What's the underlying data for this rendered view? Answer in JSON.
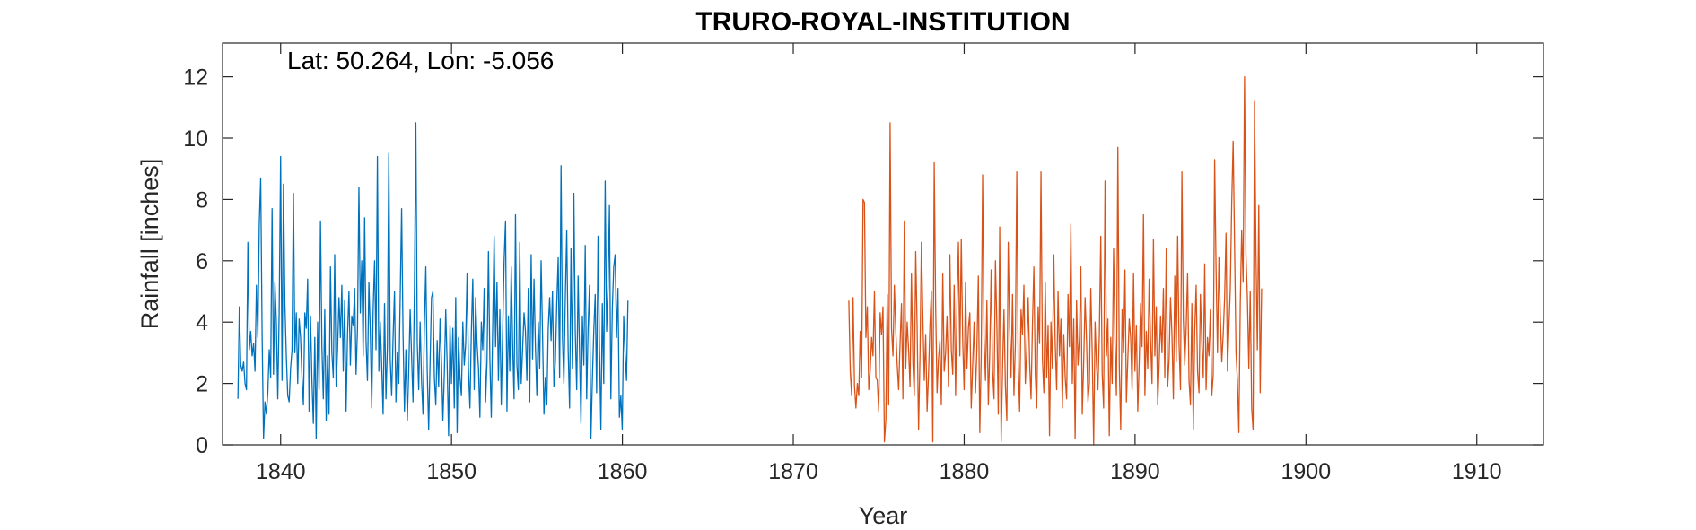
{
  "chart_data": {
    "type": "line",
    "title": "TRURO-ROYAL-INSTITUTION",
    "annotation": "Lat: 50.264, Lon: -5.056",
    "xlabel": "Year",
    "ylabel": "Rainfall [inches]",
    "xlim": [
      1836.6,
      1913.9
    ],
    "ylim": [
      0,
      13.1
    ],
    "xticks": [
      1840,
      1850,
      1860,
      1870,
      1880,
      1890,
      1900,
      1910
    ],
    "yticks": [
      0,
      2,
      4,
      6,
      8,
      10,
      12
    ],
    "grid": false,
    "series": [
      {
        "color": "#0072BD",
        "x_start": 1837.5,
        "step": 0.0833,
        "values": [
          1.5,
          4.5,
          2.6,
          2.4,
          2.7,
          2.0,
          1.8,
          6.6,
          3.1,
          3.7,
          2.9,
          3.3,
          2.4,
          5.2,
          3.5,
          7.2,
          8.7,
          3.6,
          0.2,
          1.4,
          1.0,
          1.7,
          3.1,
          2.2,
          7.7,
          2.3,
          5.3,
          4.0,
          1.5,
          4.4,
          9.4,
          2.1,
          8.5,
          4.6,
          2.9,
          1.6,
          1.4,
          2.5,
          3.1,
          8.2,
          3.0,
          4.3,
          2.0,
          4.1,
          3.5,
          2.2,
          1.3,
          4.3,
          3.8,
          5.4,
          1.1,
          4.2,
          2.1,
          0.7,
          3.5,
          0.2,
          4.0,
          1.8,
          7.3,
          3.2,
          1.5,
          4.4,
          0.8,
          2.9,
          1.0,
          5.8,
          3.0,
          2.2,
          6.2,
          1.9,
          3.1,
          4.8,
          3.5,
          5.2,
          2.4,
          4.7,
          1.1,
          3.6,
          5.0,
          2.6,
          4.2,
          3.9,
          5.1,
          2.3,
          3.8,
          8.4,
          4.3,
          6.0,
          2.9,
          7.4,
          3.4,
          2.1,
          5.3,
          3.7,
          1.2,
          4.4,
          6.0,
          3.1,
          9.4,
          2.4,
          4.0,
          2.6,
          1.0,
          4.6,
          1.5,
          3.2,
          9.5,
          2.8,
          1.6,
          3.5,
          5.0,
          1.4,
          3.0,
          2.0,
          4.8,
          7.7,
          3.6,
          1.1,
          3.1,
          0.8,
          2.4,
          4.4,
          2.9,
          1.4,
          5.1,
          10.5,
          3.3,
          1.8,
          4.0,
          2.1,
          1.0,
          3.9,
          5.8,
          2.4,
          0.5,
          2.7,
          4.8,
          5.0,
          2.2,
          1.3,
          3.4,
          1.9,
          4.1,
          2.7,
          0.8,
          2.3,
          4.4,
          2.6,
          0.3,
          3.9,
          2.0,
          3.8,
          1.2,
          4.8,
          0.4,
          3.5,
          2.2,
          1.6,
          4.0,
          2.6,
          3.3,
          5.6,
          2.4,
          1.2,
          3.7,
          5.4,
          1.8,
          4.8,
          3.3,
          2.5,
          0.9,
          4.0,
          3.1,
          5.1,
          1.4,
          2.7,
          6.3,
          2.8,
          0.9,
          3.9,
          6.8,
          3.2,
          5.3,
          2.1,
          4.4,
          1.3,
          3.7,
          6.0,
          7.3,
          1.1,
          4.2,
          2.4,
          5.8,
          3.3,
          1.5,
          7.5,
          2.6,
          1.8,
          6.6,
          2.0,
          3.1,
          4.3,
          3.7,
          2.1,
          5.1,
          1.4,
          6.2,
          2.8,
          5.4,
          3.2,
          1.6,
          4.0,
          2.5,
          6.0,
          3.6,
          1.0,
          2.2,
          1.3,
          3.8,
          4.8,
          3.4,
          5.0,
          1.9,
          2.7,
          4.6,
          6.1,
          2.2,
          9.1,
          3.5,
          2.0,
          4.8,
          7.0,
          3.1,
          1.2,
          6.4,
          2.5,
          8.2,
          3.7,
          1.8,
          5.5,
          3.0,
          0.7,
          4.2,
          2.6,
          6.5,
          1.5,
          3.8,
          5.2,
          0.2,
          2.1,
          3.7,
          4.9,
          1.7,
          6.8,
          3.2,
          0.5,
          4.6,
          2.0,
          8.6,
          3.7,
          5.1,
          7.8,
          1.5,
          4.4,
          5.8,
          6.2,
          3.5,
          5.1,
          0.9,
          1.6,
          0.5,
          4.2,
          3.0,
          2.1,
          4.7
        ]
      },
      {
        "color": "#D95319",
        "x_start": 1873.25,
        "step": 0.0833,
        "values": [
          4.7,
          2.4,
          1.6,
          4.8,
          1.9,
          1.2,
          2.0,
          1.6,
          3.7,
          2.2,
          8.0,
          7.9,
          3.5,
          4.5,
          1.8,
          2.4,
          3.5,
          2.9,
          5.0,
          2.2,
          2.1,
          1.1,
          4.3,
          3.6,
          4.5,
          0.1,
          0.8,
          4.9,
          1.3,
          10.5,
          3.8,
          2.9,
          5.2,
          3.7,
          2.6,
          1.8,
          3.3,
          4.6,
          1.5,
          7.3,
          2.5,
          4.0,
          3.1,
          1.9,
          5.6,
          2.7,
          1.6,
          6.3,
          3.8,
          0.5,
          2.9,
          6.6,
          4.2,
          2.1,
          3.6,
          1.1,
          2.3,
          3.9,
          5.0,
          0.1,
          9.2,
          4.5,
          1.7,
          2.8,
          3.4,
          1.3,
          5.6,
          2.4,
          3.0,
          4.2,
          1.9,
          6.2,
          3.1,
          2.3,
          5.2,
          1.6,
          4.6,
          6.6,
          2.9,
          6.7,
          3.4,
          1.8,
          5.3,
          2.5,
          3.8,
          4.3,
          1.2,
          2.6,
          4.0,
          1.7,
          3.2,
          5.5,
          0.4,
          2.9,
          8.8,
          3.5,
          2.1,
          4.7,
          1.3,
          3.0,
          5.7,
          2.4,
          1.5,
          6.0,
          3.9,
          1.0,
          7.1,
          0.1,
          2.5,
          4.4,
          1.9,
          0.8,
          6.6,
          3.8,
          2.2,
          4.9,
          1.6,
          3.3,
          8.9,
          2.6,
          1.1,
          4.4,
          3.6,
          5.2,
          2.0,
          3.1,
          4.8,
          2.7,
          1.5,
          3.9,
          5.8,
          2.3,
          1.2,
          4.5,
          3.3,
          8.9,
          2.8,
          1.7,
          5.3,
          2.2,
          3.9,
          0.3,
          4.0,
          2.5,
          6.2,
          3.3,
          1.8,
          5.0,
          2.9,
          4.1,
          1.2,
          3.6,
          2.2,
          1.5,
          4.9,
          3.2,
          7.2,
          2.0,
          4.1,
          0.2,
          4.7,
          2.6,
          3.5,
          5.8,
          1.0,
          2.7,
          4.8,
          3.4,
          1.4,
          2.0,
          5.1,
          3.0,
          0.0,
          4.0,
          2.6,
          1.8,
          3.6,
          6.8,
          2.3,
          1.2,
          8.6,
          2.9,
          4.1,
          0.3,
          3.5,
          2.0,
          6.4,
          3.3,
          1.6,
          9.7,
          2.6,
          0.5,
          4.4,
          3.0,
          5.7,
          1.4,
          2.8,
          4.1,
          3.5,
          1.8,
          5.6,
          2.4,
          3.9,
          1.1,
          2.7,
          4.6,
          3.2,
          7.5,
          1.6,
          3.7,
          2.5,
          5.4,
          3.4,
          2.0,
          6.7,
          2.9,
          4.5,
          1.3,
          2.6,
          4.2,
          3.0,
          5.1,
          2.2,
          6.4,
          1.9,
          2.8,
          4.8,
          3.6,
          1.5,
          5.5,
          2.7,
          6.8,
          3.3,
          1.8,
          8.9,
          4.1,
          2.6,
          3.8,
          5.6,
          2.1,
          1.3,
          4.6,
          0.5,
          3.7,
          5.2,
          2.4,
          1.7,
          4.9,
          3.3,
          2.2,
          5.9,
          1.8,
          3.5,
          2.9,
          4.4,
          1.6,
          2.3,
          9.3,
          5.7,
          3.0,
          6.1,
          4.2,
          2.7,
          3.6,
          4.8,
          6.9,
          2.4,
          3.8,
          5.1,
          7.9,
          9.9,
          6.5,
          3.0,
          2.1,
          0.4,
          4.6,
          7.0,
          5.3,
          12.0,
          6.2,
          4.8,
          2.5,
          5.0,
          1.2,
          0.5,
          11.2,
          6.4,
          3.1,
          7.8,
          1.7,
          5.1
        ]
      }
    ]
  }
}
